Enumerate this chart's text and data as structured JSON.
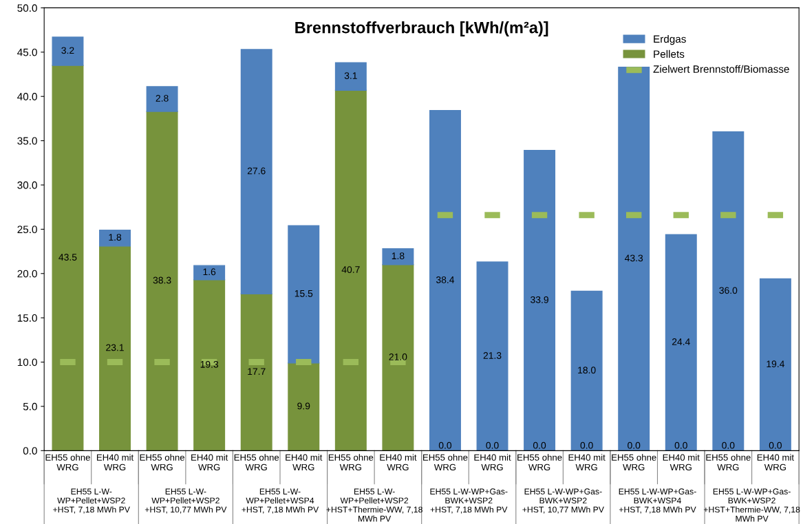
{
  "chart_data": {
    "type": "bar",
    "title": "Brennstoffverbrauch [kWh/(m²a)]",
    "stacked": true,
    "categories": [
      "EH55 ohne\nWRG",
      "EH40 mit\nWRG",
      "EH55 ohne\nWRG",
      "EH40 mit\nWRG",
      "EH55 ohne\nWRG",
      "EH40 mit\nWRG",
      "EH55 ohne\nWRG",
      "EH40 mit\nWRG",
      "EH55 ohne\nWRG",
      "EH40 mit\nWRG",
      "EH55 ohne\nWRG",
      "EH40 mit\nWRG",
      "EH55 ohne\nWRG",
      "EH40 mit\nWRG",
      "EH55 ohne\nWRG",
      "EH40 mit\nWRG"
    ],
    "series": [
      {
        "name": "Pellets",
        "color": "#77933c",
        "values": [
          43.5,
          23.1,
          38.3,
          19.3,
          17.7,
          9.9,
          40.7,
          21.0,
          0.0,
          0.0,
          0.0,
          0.0,
          0.0,
          0.0,
          0.0,
          0.0
        ],
        "value_labels": [
          "43.5",
          "23.1",
          "38.3",
          "19.3",
          "17.7",
          "9.9",
          "40.7",
          "21.0",
          "0.0",
          "0.0",
          "0.0",
          "0.0",
          "0.0",
          "0.0",
          "0.0",
          "0.0"
        ]
      },
      {
        "name": "Erdgas",
        "color": "#4f81bd",
        "values": [
          3.2,
          1.8,
          2.8,
          1.6,
          27.6,
          15.5,
          3.1,
          1.8,
          38.4,
          21.3,
          33.9,
          18.0,
          43.3,
          24.4,
          36.0,
          19.4
        ],
        "value_labels": [
          "3.2",
          "1.8",
          "2.8",
          "1.6",
          "27.6",
          "15.5",
          "3.1",
          "1.8",
          "38.4",
          "21.3",
          "33.9",
          "18.0",
          "43.3",
          "24.4",
          "36.0",
          "19.4"
        ]
      },
      {
        "name": "Zielwert Brennstoff/Biomasse",
        "type": "scatter",
        "color": "#9bbb59",
        "values": [
          10,
          10,
          10,
          10,
          10,
          10,
          10,
          10,
          26.6,
          26.6,
          26.6,
          26.6,
          26.6,
          26.6,
          26.6,
          26.6
        ]
      }
    ],
    "annotations": [
      "EH55 L-W-\nWP+Pellet+WSP2\n+HST, 7,18 MWh PV",
      "EH55 L-W-\nWP+Pellet+WSP2\n+HST, 10,77 MWh PV",
      "EH55 L-W-\nWP+Pellet+WSP4\n+HST, 7,18 MWh PV",
      "EH55 L-W-\nWP+Pellet+WSP2\n+HST+Thermie-WW, 7,18\nMWh PV",
      "EH55 L-W-WP+Gas-\nBWK+WSP2\n+HST, 7,18 MWh PV",
      "EH55 L-W-WP+Gas-\nBWK+WSP2\n+HST, 10,77 MWh PV",
      "EH55 L-W-WP+Gas-\nBWK+WSP4\n+HST, 7,18 MWh PV",
      "EH55 L-W-WP+Gas-\nBWK+WSP2\n+HST+Thermie-WW, 7,18\nMWh PV"
    ],
    "ylim": [
      0,
      50
    ],
    "yticks": [
      {
        "value": 0,
        "label": "0.0"
      },
      {
        "value": 5,
        "label": "5.0"
      },
      {
        "value": 10,
        "label": "10.0"
      },
      {
        "value": 15,
        "label": "15.0"
      },
      {
        "value": 20,
        "label": "20.0"
      },
      {
        "value": 25,
        "label": "25.0"
      },
      {
        "value": 30,
        "label": "30.0"
      },
      {
        "value": 35,
        "label": "35.0"
      },
      {
        "value": 40,
        "label": "40.0"
      },
      {
        "value": 45,
        "label": "45.0"
      },
      {
        "value": 50,
        "label": "50.0"
      }
    ],
    "legend": "top right",
    "grid": false
  }
}
